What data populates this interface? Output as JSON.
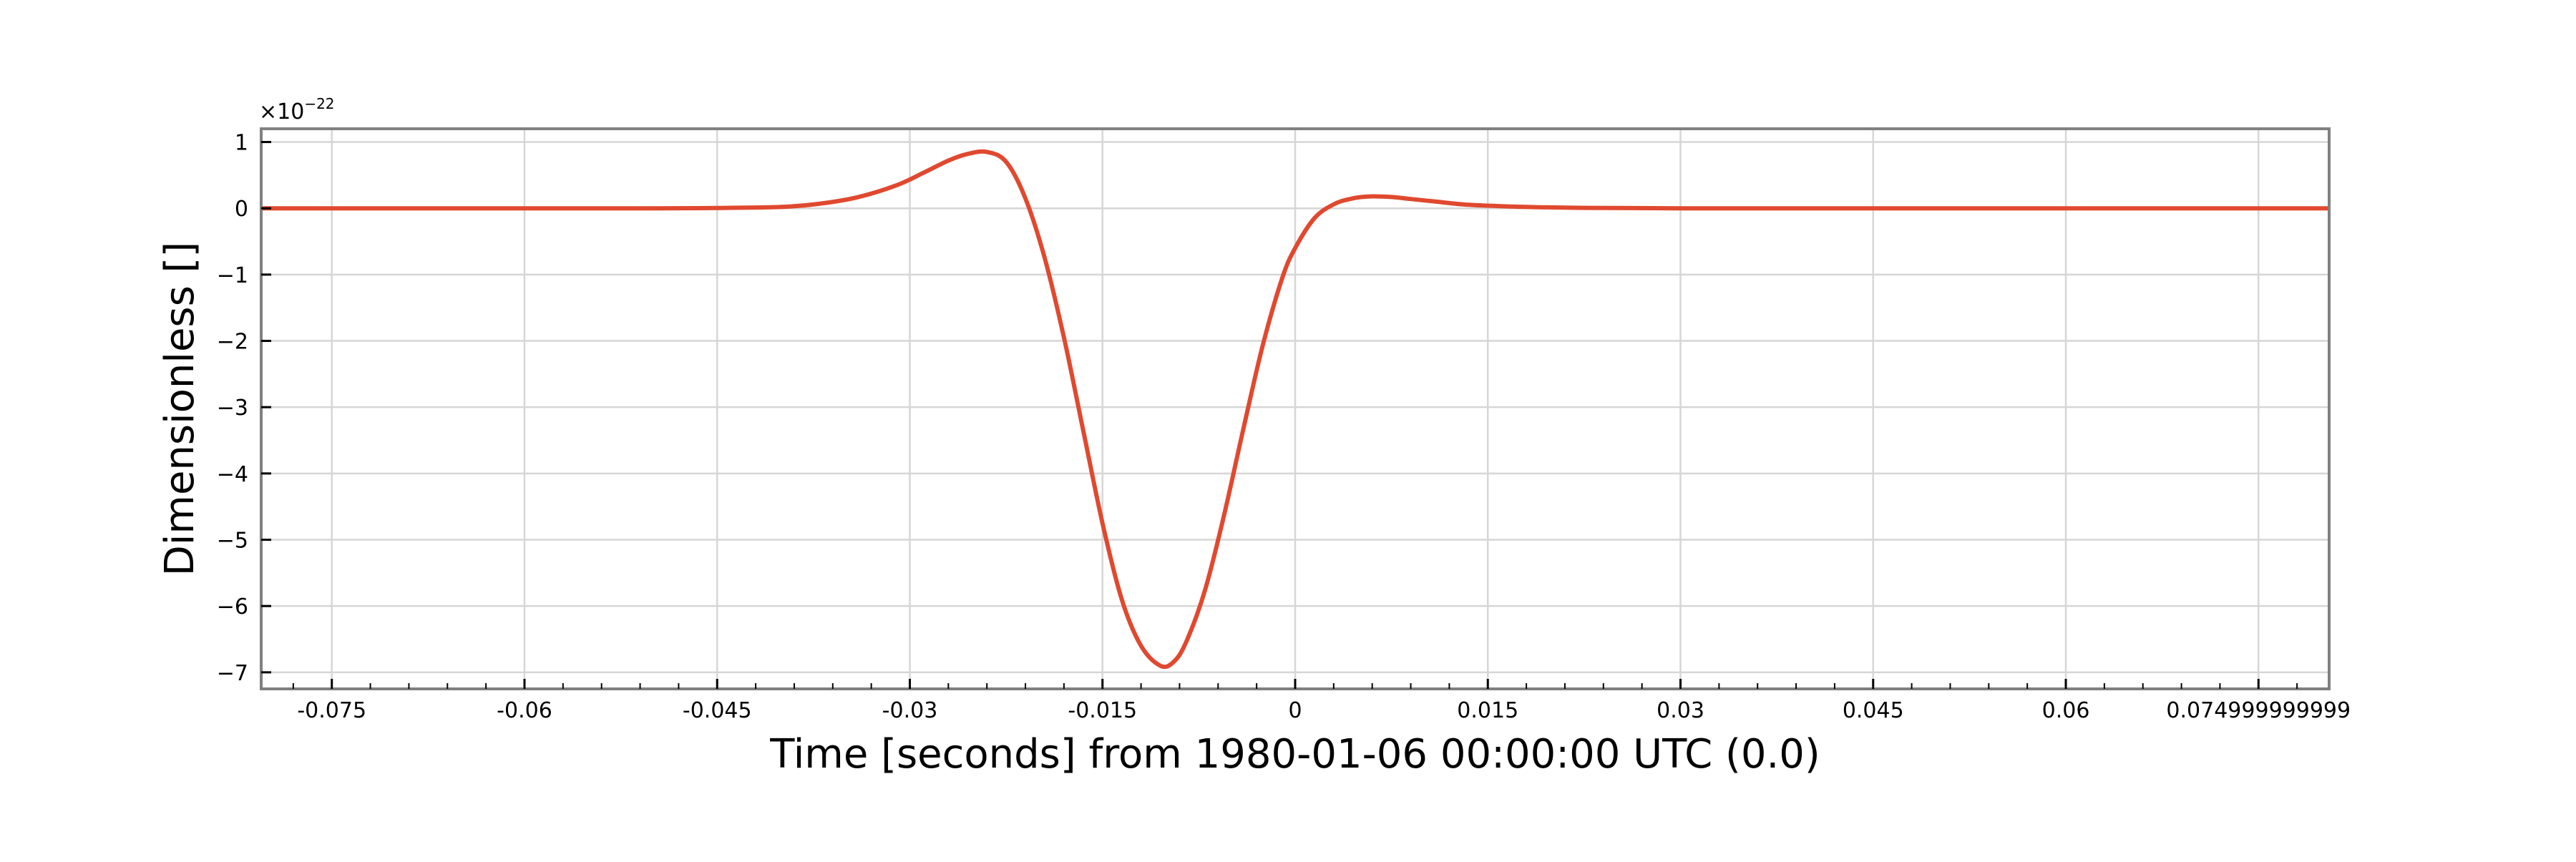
{
  "chart_data": {
    "type": "line",
    "xlabel": "Time [seconds] from 1980-01-06 00:00:00 UTC (0.0)",
    "ylabel": "Dimensionless []",
    "xlim": [
      -0.0805,
      0.0805
    ],
    "ylim": [
      -7.25,
      1.2
    ],
    "y_multiplier_base": "×10",
    "y_multiplier_exponent": "−22",
    "grid": true,
    "x_ticks": [
      -0.075,
      -0.06,
      -0.045,
      -0.03,
      -0.015,
      0,
      0.015,
      0.03,
      0.045,
      0.06,
      0.074999999999
    ],
    "x_tick_labels": [
      "-0.075",
      "-0.06",
      "-0.045",
      "-0.03",
      "-0.015",
      "0",
      "0.015",
      "0.03",
      "0.045",
      "0.06",
      "0.074999999999"
    ],
    "y_ticks": [
      1,
      0,
      -1,
      -2,
      -3,
      -4,
      -5,
      -6,
      -7
    ],
    "y_tick_labels": [
      "1",
      "0",
      "−1",
      "−2",
      "−3",
      "−4",
      "−5",
      "−6",
      "−7"
    ],
    "series": [
      {
        "color": "#e0492f",
        "x": [
          -0.0805,
          -0.07,
          -0.06,
          -0.05,
          -0.045,
          -0.04,
          -0.037,
          -0.034,
          -0.031,
          -0.029,
          -0.027,
          -0.0255,
          -0.024,
          -0.0225,
          -0.021,
          -0.0195,
          -0.018,
          -0.0165,
          -0.015,
          -0.0135,
          -0.012,
          -0.0105,
          -0.0095,
          -0.0085,
          -0.007,
          -0.0055,
          -0.004,
          -0.0025,
          -0.001,
          0,
          0.0015,
          0.003,
          0.0045,
          0.006,
          0.0075,
          0.009,
          0.011,
          0.013,
          0.015,
          0.018,
          0.022,
          0.03,
          0.05,
          0.0805
        ],
        "y": [
          0,
          0,
          0,
          0,
          0.005,
          0.02,
          0.07,
          0.17,
          0.35,
          0.53,
          0.72,
          0.82,
          0.85,
          0.7,
          0.15,
          -0.75,
          -1.95,
          -3.35,
          -4.75,
          -5.9,
          -6.6,
          -6.9,
          -6.85,
          -6.55,
          -5.75,
          -4.6,
          -3.3,
          -2.05,
          -1.05,
          -0.6,
          -0.15,
          0.06,
          0.15,
          0.18,
          0.17,
          0.14,
          0.1,
          0.06,
          0.04,
          0.02,
          0.008,
          0,
          0,
          0
        ]
      }
    ]
  }
}
